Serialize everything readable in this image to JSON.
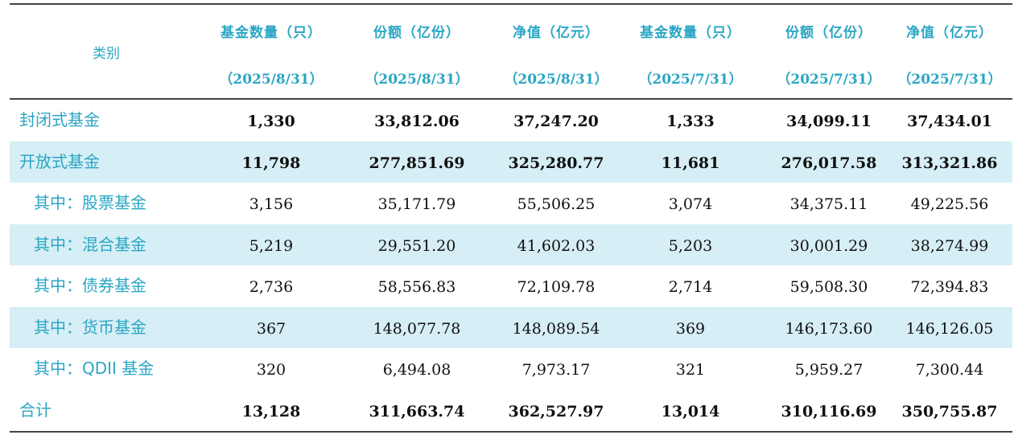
{
  "header": {
    "category": "类别",
    "columns": [
      {
        "title": "基金数量（只）",
        "date": "（2025/8/31）"
      },
      {
        "title": "份额（亿份）",
        "date": "（2025/8/31）"
      },
      {
        "title": "净值（亿元）",
        "date": "（2025/8/31）"
      },
      {
        "title": "基金数量（只）",
        "date": "（2025/7/31）"
      },
      {
        "title": "份额（亿份）",
        "date": "（2025/7/31）"
      },
      {
        "title": "净值（亿元）",
        "date": "（2025/7/31）"
      }
    ]
  },
  "rows": [
    {
      "name": "封闭式基金",
      "values": [
        "1,330",
        "33,812.06",
        "37,247.20",
        "1,333",
        "34,099.11",
        "37,434.01"
      ]
    },
    {
      "name": "开放式基金",
      "values": [
        "11,798",
        "277,851.69",
        "325,280.77",
        "11,681",
        "276,017.58",
        "313,321.86"
      ]
    },
    {
      "name": "其中：股票基金",
      "values": [
        "3,156",
        "35,171.79",
        "55,506.25",
        "3,074",
        "34,375.11",
        "49,225.56"
      ]
    },
    {
      "name": "其中：混合基金",
      "values": [
        "5,219",
        "29,551.20",
        "41,602.03",
        "5,203",
        "30,001.29",
        "38,274.99"
      ]
    },
    {
      "name": "其中：债券基金",
      "values": [
        "2,736",
        "58,556.83",
        "72,109.78",
        "2,714",
        "59,508.30",
        "72,394.83"
      ]
    },
    {
      "name": "其中：货币基金",
      "values": [
        "367",
        "148,077.78",
        "148,089.54",
        "369",
        "146,173.60",
        "146,126.05"
      ]
    },
    {
      "name": "其中：QDII 基金",
      "values": [
        "320",
        "6,494.08",
        "7,973.17",
        "321",
        "5,959.27",
        "7,300.44"
      ]
    },
    {
      "name": "合计",
      "values": [
        "13,128",
        "311,663.74",
        "362,527.97",
        "13,014",
        "310,116.69",
        "350,755.87"
      ]
    }
  ]
}
